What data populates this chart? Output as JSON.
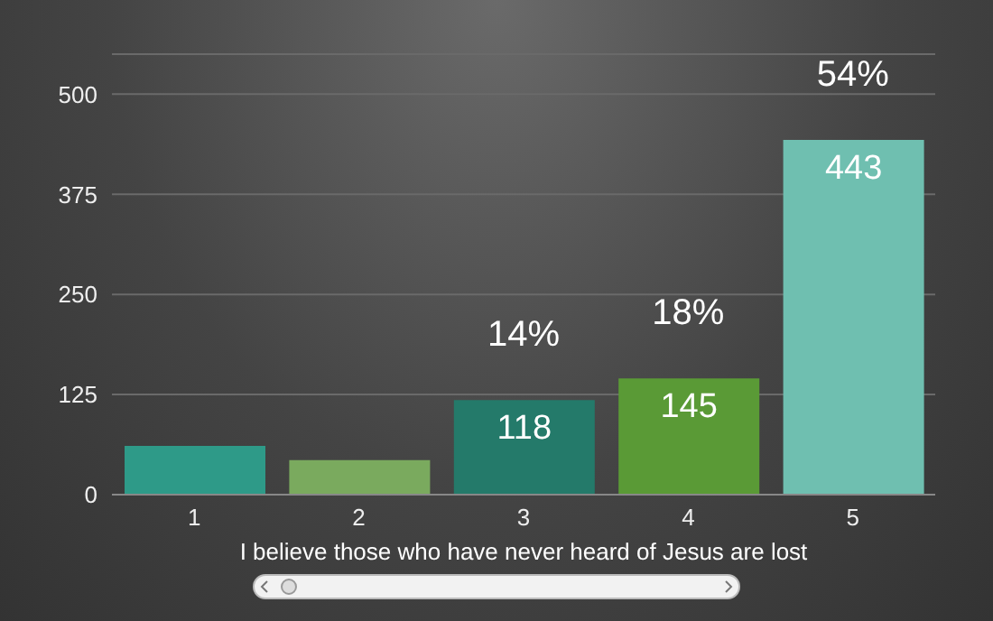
{
  "chart_data": {
    "type": "bar",
    "xlabel": "I believe those who have never heard of Jesus are lost",
    "categories": [
      "1",
      "2",
      "3",
      "4",
      "5"
    ],
    "values": [
      61,
      43,
      118,
      145,
      443
    ],
    "colors": [
      "#2e9a88",
      "#7aaa5e",
      "#247a6a",
      "#5a9a36",
      "#6fbfb0"
    ],
    "value_labels": [
      null,
      null,
      "118",
      "145",
      "443"
    ],
    "annotations": [
      "14%",
      "18%",
      "54%"
    ],
    "ylim": [
      0,
      550
    ],
    "yticks": [
      0,
      125,
      250,
      375,
      500
    ],
    "grid": "y"
  }
}
